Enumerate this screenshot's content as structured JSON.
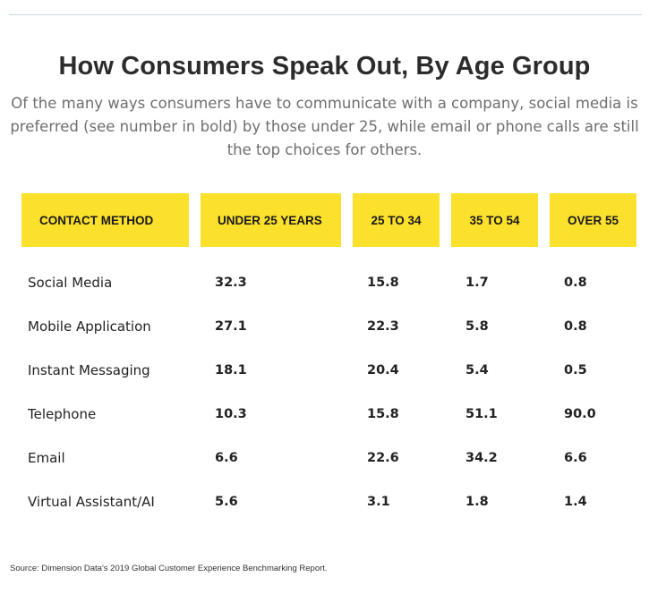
{
  "chart_data": {
    "type": "table",
    "title": "How Consumers Speak Out, By Age Group",
    "subtitle": "Of the many ways consumers have to communicate with a company, social media is preferred (see number in bold) by those under 25, while email or phone calls are still the top choices for others.",
    "columns": [
      "CONTACT METHOD",
      "UNDER 25 YEARS",
      "25 TO 34",
      "35 TO 54",
      "OVER 55"
    ],
    "rows": [
      {
        "method": "Social Media",
        "values": [
          "32.3",
          "15.8",
          "1.7",
          "0.8"
        ]
      },
      {
        "method": "Mobile Application",
        "values": [
          "27.1",
          "22.3",
          "5.8",
          "0.8"
        ]
      },
      {
        "method": "Instant Messaging",
        "values": [
          "18.1",
          "20.4",
          "5.4",
          "0.5"
        ]
      },
      {
        "method": "Telephone",
        "values": [
          "10.3",
          "15.8",
          "51.1",
          "90.0"
        ]
      },
      {
        "method": "Email",
        "values": [
          "6.6",
          "22.6",
          "34.2",
          "6.6"
        ]
      },
      {
        "method": "Virtual Assistant/AI",
        "values": [
          "5.6",
          "3.1",
          "1.8",
          "1.4"
        ]
      }
    ],
    "source": "Source: Dimension Data's 2019 Global Customer Experience Benchmarking Report."
  },
  "colors": {
    "header_fill": "#fbe02c",
    "title": "#2c2c2c",
    "subtitle": "#6e6e6e"
  }
}
